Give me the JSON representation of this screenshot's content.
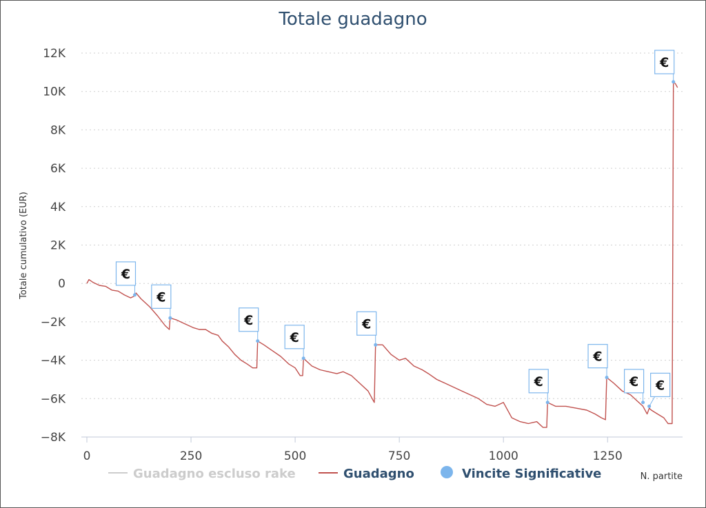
{
  "chart_data": {
    "type": "line",
    "title": "Totale guadagno",
    "ylabel": "Totale cumulativo (EUR)",
    "xlabel": "N. partite",
    "xlim": [
      0,
      1430
    ],
    "ylim": [
      -8000,
      12000
    ],
    "xticks": [
      0,
      250,
      500,
      750,
      1000,
      1250
    ],
    "xtick_labels": [
      "0",
      "250",
      "500",
      "750",
      "1000",
      "1250"
    ],
    "yticks": [
      -8000,
      -6000,
      -4000,
      -2000,
      0,
      2000,
      4000,
      6000,
      8000,
      10000,
      12000
    ],
    "ytick_labels": [
      "−8K",
      "−6K",
      "−4K",
      "−2K",
      "0",
      "2K",
      "4K",
      "6K",
      "8K",
      "10K",
      "12K"
    ],
    "grid": "horizontal dotted",
    "legend_placement": "bottom-center",
    "colors": {
      "guadagno": "#c0504d",
      "escluso": "#cccccc",
      "vincite": "#7cb5ec",
      "legend_text": "#2f4f6f"
    },
    "legend": [
      {
        "label": "Guadagno escluso rake",
        "marker": "line",
        "color": "#cccccc",
        "enabled": false
      },
      {
        "label": "Guadagno",
        "marker": "line",
        "color": "#c0504d",
        "enabled": true
      },
      {
        "label": "Vincite Significative",
        "marker": "dot",
        "color": "#7cb5ec",
        "enabled": true
      }
    ],
    "series": [
      {
        "name": "Guadagno",
        "points": [
          [
            0,
            0
          ],
          [
            5,
            200
          ],
          [
            15,
            50
          ],
          [
            30,
            -100
          ],
          [
            45,
            -150
          ],
          [
            60,
            -350
          ],
          [
            75,
            -400
          ],
          [
            90,
            -600
          ],
          [
            105,
            -750
          ],
          [
            115,
            -650
          ],
          [
            118,
            -500
          ],
          [
            130,
            -800
          ],
          [
            150,
            -1200
          ],
          [
            170,
            -1700
          ],
          [
            188,
            -2200
          ],
          [
            198,
            -2400
          ],
          [
            200,
            -1800
          ],
          [
            215,
            -1900
          ],
          [
            235,
            -2100
          ],
          [
            255,
            -2300
          ],
          [
            270,
            -2400
          ],
          [
            285,
            -2400
          ],
          [
            300,
            -2600
          ],
          [
            315,
            -2700
          ],
          [
            325,
            -3000
          ],
          [
            340,
            -3300
          ],
          [
            355,
            -3700
          ],
          [
            370,
            -4000
          ],
          [
            385,
            -4200
          ],
          [
            398,
            -4400
          ],
          [
            408,
            -4400
          ],
          [
            410,
            -3000
          ],
          [
            425,
            -3200
          ],
          [
            445,
            -3500
          ],
          [
            465,
            -3800
          ],
          [
            485,
            -4200
          ],
          [
            500,
            -4400
          ],
          [
            512,
            -4800
          ],
          [
            518,
            -4800
          ],
          [
            520,
            -3900
          ],
          [
            540,
            -4300
          ],
          [
            560,
            -4500
          ],
          [
            580,
            -4600
          ],
          [
            600,
            -4700
          ],
          [
            615,
            -4600
          ],
          [
            635,
            -4800
          ],
          [
            655,
            -5200
          ],
          [
            675,
            -5600
          ],
          [
            690,
            -6200
          ],
          [
            693,
            -3200
          ],
          [
            710,
            -3200
          ],
          [
            730,
            -3700
          ],
          [
            750,
            -4000
          ],
          [
            765,
            -3900
          ],
          [
            785,
            -4300
          ],
          [
            805,
            -4500
          ],
          [
            820,
            -4700
          ],
          [
            840,
            -5000
          ],
          [
            860,
            -5200
          ],
          [
            880,
            -5400
          ],
          [
            900,
            -5600
          ],
          [
            920,
            -5800
          ],
          [
            940,
            -6000
          ],
          [
            960,
            -6300
          ],
          [
            980,
            -6400
          ],
          [
            1000,
            -6200
          ],
          [
            1020,
            -7000
          ],
          [
            1040,
            -7200
          ],
          [
            1060,
            -7300
          ],
          [
            1080,
            -7200
          ],
          [
            1095,
            -7500
          ],
          [
            1104,
            -7500
          ],
          [
            1106,
            -6200
          ],
          [
            1125,
            -6400
          ],
          [
            1150,
            -6400
          ],
          [
            1175,
            -6500
          ],
          [
            1200,
            -6600
          ],
          [
            1220,
            -6800
          ],
          [
            1235,
            -7000
          ],
          [
            1245,
            -7100
          ],
          [
            1248,
            -4900
          ],
          [
            1265,
            -5200
          ],
          [
            1285,
            -5600
          ],
          [
            1305,
            -5800
          ],
          [
            1320,
            -6100
          ],
          [
            1335,
            -6400
          ],
          [
            1345,
            -6800
          ],
          [
            1350,
            -6500
          ],
          [
            1355,
            -6600
          ],
          [
            1370,
            -6800
          ],
          [
            1385,
            -7000
          ],
          [
            1395,
            -7300
          ],
          [
            1405,
            -7300
          ],
          [
            1408,
            10500
          ],
          [
            1413,
            10400
          ],
          [
            1418,
            10200
          ]
        ]
      }
    ],
    "flags": [
      {
        "x": 115,
        "y": -600,
        "text": "€",
        "side": "left"
      },
      {
        "x": 200,
        "y": -1800,
        "text": "€",
        "side": "left"
      },
      {
        "x": 410,
        "y": -3000,
        "text": "€",
        "side": "left"
      },
      {
        "x": 520,
        "y": -3900,
        "text": "€",
        "side": "left"
      },
      {
        "x": 693,
        "y": -3200,
        "text": "€",
        "side": "left"
      },
      {
        "x": 1106,
        "y": -6200,
        "text": "€",
        "side": "left"
      },
      {
        "x": 1248,
        "y": -4900,
        "text": "€",
        "side": "left"
      },
      {
        "x": 1335,
        "y": -6200,
        "text": "€",
        "side": "left"
      },
      {
        "x": 1350,
        "y": -6400,
        "text": "€",
        "side": "right"
      },
      {
        "x": 1408,
        "y": 10500,
        "text": "€",
        "side": "left"
      }
    ]
  }
}
